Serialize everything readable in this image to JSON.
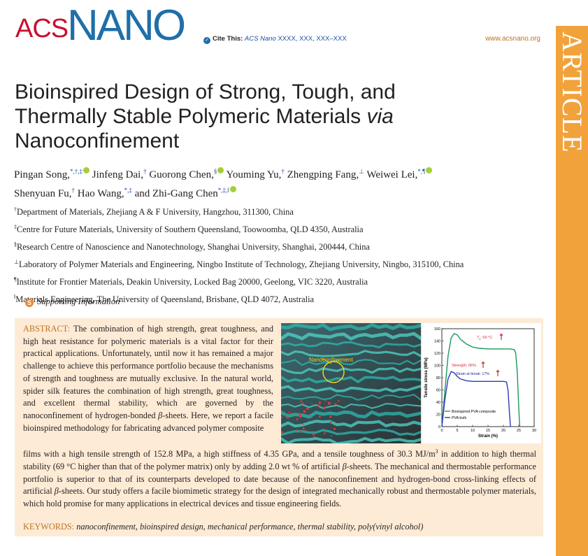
{
  "header": {
    "logo_acs": "ACS",
    "logo_nano": "NANO",
    "cite_label": "Cite This:",
    "cite_journal": "ACS Nano",
    "cite_ref": "XXXX, XXX, XXX–XXX",
    "site_url": "www.acsnano.org",
    "banner_text": "ARTICLE"
  },
  "title": {
    "line1": "Bioinspired Design of Strong, Tough, and",
    "line2": "Thermally Stable Polymeric Materials ",
    "line2_italic": "via",
    "line3": "Nanoconfinement"
  },
  "authors": [
    {
      "name": "Pingan Song,",
      "sup": "*,†,‡",
      "orcid": true
    },
    {
      "name": "Jinfeng Dai,",
      "sup": "†",
      "orcid": false
    },
    {
      "name": "Guorong Chen,",
      "sup": "§",
      "orcid": true
    },
    {
      "name": "Youming Yu,",
      "sup": "†",
      "orcid": false
    },
    {
      "name": "Zhengping Fang,",
      "sup": "⊥",
      "orcid": false
    },
    {
      "name": "Weiwei Lei,",
      "sup": "*,¶",
      "orcid": true
    },
    {
      "name": "Shenyuan Fu,",
      "sup": "†",
      "orcid": false
    },
    {
      "name": "Hao Wang,",
      "sup": "*,‡",
      "orcid": false
    },
    {
      "name": "and Zhi-Gang Chen",
      "sup": "*,‡,‖",
      "orcid": true
    }
  ],
  "affiliations": [
    {
      "mark": "†",
      "text": "Department of Materials, Zhejiang A & F University, Hangzhou, 311300, China"
    },
    {
      "mark": "‡",
      "text": "Centre for Future Materials, University of Southern Queensland, Toowoomba, QLD 4350, Australia"
    },
    {
      "mark": "§",
      "text": "Research Centre of Nanoscience and Nanotechnology, Shanghai University, Shanghai, 200444, China"
    },
    {
      "mark": "⊥",
      "text": "Laboratory of Polymer Materials and Engineering, Ningbo Institute of Technology, Zhejiang University, Ningbo, 315100, China"
    },
    {
      "mark": "¶",
      "text": "Institute for Frontier Materials, Deakin University, Locked Bag 20000, Geelong, VIC 3220, Australia"
    },
    {
      "mark": "‖",
      "text": "Materials Engineering, The University of Queensland, Brisbane, QLD 4072, Australia"
    }
  ],
  "supporting": {
    "icon": "S",
    "label": "Supporting Information"
  },
  "abstract": {
    "label": "ABSTRACT:",
    "part1": "The combination of high strength, great toughness, and high heat resistance for polymeric materials is a vital factor for their practical applications. Unfortunately, until now it has remained a major challenge to achieve this performance portfolio because the mechanisms of strength and toughness are mutually exclusive. In the natural world, spider silk features the combination of high strength, great toughness, and excellent thermal stability, which are governed by the nanoconfinement of hydrogen-bonded ",
    "beta": "β",
    "part1b": "-sheets. Here, we report a facile bioinspired methodology for fabricating advanced polymer composite",
    "part2a": "films with a high tensile strength of 152.8 MPa, a high stiffness of 4.35 GPa, and a tensile toughness of 30.3 MJ/m",
    "part2_sup": "3",
    "part2b": " in addition to high thermal stability (69 °C higher than that of the polymer matrix) only by adding 2.0 wt % of artificial ",
    "part2c": "-sheets. The mechanical and thermostable performance portfolio is superior to that of its counterparts developed to date because of the nanoconfinement and hydrogen-bond cross-linking effects of artificial ",
    "part2d": "-sheets. Our study offers a facile biomimetic strategy for the design of integrated mechanically robust and thermostable polymer materials, which hold promise for many applications in electrical devices and tissue engineering fields."
  },
  "keywords": {
    "label": "KEYWORDS:",
    "text": "nanoconfinement, bioinspired design, mechanical performance, thermal stability, poly(vinyl alcohol)"
  },
  "toc_image": {
    "overlay_label": "Nanoconfinement"
  },
  "chart_data": {
    "type": "line",
    "title": "",
    "xlabel": "Strain (%)",
    "ylabel": "Tensile stress (MPa)",
    "xlim": [
      0,
      30
    ],
    "ylim": [
      0,
      160
    ],
    "xticks": [
      "0",
      "5",
      "10",
      "15",
      "20",
      "25",
      "30"
    ],
    "yticks": [
      "0",
      "20",
      "40",
      "60",
      "80",
      "100",
      "120",
      "140",
      "160"
    ],
    "legend_position": "bottom-left",
    "series": [
      {
        "name": "Bioinspired PVA composite",
        "color": "#1a9a5a",
        "x": [
          0,
          1,
          2,
          3,
          4,
          5,
          6,
          8,
          10,
          12,
          15,
          18,
          20,
          22,
          23.5,
          24,
          24.5,
          25,
          25.3
        ],
        "y": [
          0,
          60,
          115,
          145,
          152,
          150,
          143,
          135,
          130,
          128,
          127,
          127,
          127,
          127,
          126,
          120,
          90,
          30,
          0
        ]
      },
      {
        "name": "PVA bulk",
        "color": "#2a3cbf",
        "x": [
          0,
          1,
          2,
          3,
          4,
          5,
          6,
          8,
          10,
          12,
          15,
          18,
          20,
          21,
          21.5,
          22,
          22.3
        ],
        "y": [
          0,
          45,
          78,
          90,
          88,
          82,
          78,
          75,
          74,
          74,
          74,
          74,
          74,
          73,
          60,
          20,
          0
        ]
      }
    ],
    "annotations": [
      {
        "text": "T",
        "sub": "g",
        "rest": ": 69 °C",
        "arrow": "up",
        "color": "#d42a3a"
      },
      {
        "text": "Strength: 66%",
        "arrow": "up",
        "color": "#d42a3a"
      },
      {
        "text": "Strain at break: 17%",
        "arrow": "up",
        "color": "#d42a3a"
      }
    ]
  }
}
